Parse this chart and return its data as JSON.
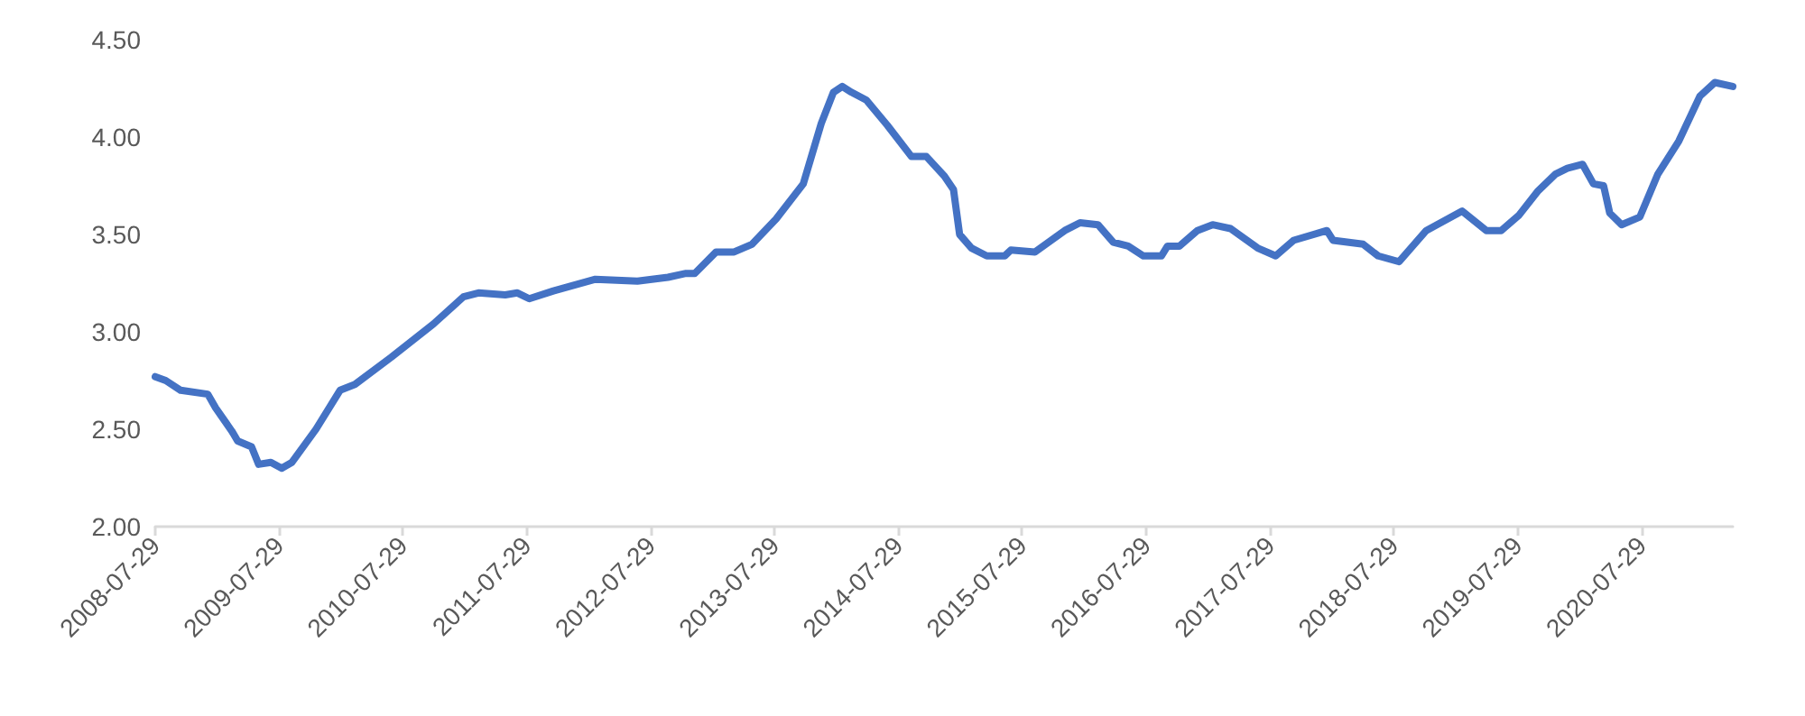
{
  "chart_data": {
    "type": "line",
    "marker": "none",
    "line_style": "solid",
    "grid": false,
    "xlim": [
      "2008-07-29",
      "2021-04-24"
    ],
    "xticks": [
      "2008-07-29",
      "2009-07-29",
      "2010-07-29",
      "2011-07-29",
      "2012-07-29",
      "2013-07-29",
      "2014-07-29",
      "2015-07-29",
      "2016-07-29",
      "2017-07-29",
      "2018-07-29",
      "2019-07-29",
      "2020-07-29"
    ],
    "ylim": [
      2,
      4.5
    ],
    "yticks": [
      {
        "value": 2,
        "label": "2.00"
      },
      {
        "value": 2.5,
        "label": "2.50"
      },
      {
        "value": 3,
        "label": "3.00"
      },
      {
        "value": 3.5,
        "label": "3.50"
      },
      {
        "value": 4,
        "label": "4.00"
      },
      {
        "value": 4.5,
        "label": "4.50"
      }
    ],
    "series": [
      {
        "color": "#4472c4",
        "x": [
          "2008-07-29",
          "2008-08-29",
          "2008-10-12",
          "2008-12-31",
          "2009-01-23",
          "2009-03-12",
          "2009-03-29",
          "2009-05-09",
          "2009-05-30",
          "2009-07-05",
          "2009-08-06",
          "2009-09-05",
          "2009-11-15",
          "2010-01-25",
          "2010-03-10",
          "2010-06-25",
          "2010-10-27",
          "2011-01-24",
          "2011-03-09",
          "2011-05-27",
          "2011-07-02",
          "2011-08-06",
          "2011-10-16",
          "2012-02-17",
          "2012-06-20",
          "2012-09-18",
          "2012-11-10",
          "2012-12-06",
          "2013-02-07",
          "2013-04-01",
          "2013-05-24",
          "2013-08-03",
          "2013-10-22",
          "2013-12-14",
          "2014-01-19",
          "2014-02-14",
          "2014-03-13",
          "2014-04-26",
          "2014-06-27",
          "2014-09-06",
          "2014-10-20",
          "2014-12-12",
          "2015-01-08",
          "2015-01-26",
          "2015-03-02",
          "2015-04-16",
          "2015-06-08",
          "2015-06-26",
          "2015-09-05",
          "2015-12-02",
          "2016-01-16",
          "2016-03-09",
          "2016-04-23",
          "2016-06-06",
          "2016-07-21",
          "2016-09-12",
          "2016-09-30",
          "2016-11-04",
          "2016-12-27",
          "2017-02-10",
          "2017-04-04",
          "2017-06-23",
          "2017-08-15",
          "2017-10-07",
          "2018-01-13",
          "2018-01-31",
          "2018-04-30",
          "2018-06-13",
          "2018-08-14",
          "2018-11-02",
          "2019-02-16",
          "2019-04-28",
          "2019-06-11",
          "2019-08-03",
          "2019-09-26",
          "2019-11-18",
          "2019-12-23",
          "2020-02-06",
          "2020-03-09",
          "2020-04-08",
          "2020-04-26",
          "2020-05-31",
          "2020-07-24",
          "2020-09-15",
          "2020-11-16",
          "2021-01-17",
          "2021-03-02",
          "2021-04-24"
        ],
        "values": [
          2.77,
          2.75,
          2.7,
          2.68,
          2.61,
          2.49,
          2.44,
          2.41,
          2.32,
          2.33,
          2.3,
          2.33,
          2.5,
          2.7,
          2.73,
          2.87,
          3.04,
          3.18,
          3.2,
          3.19,
          3.2,
          3.17,
          3.21,
          3.27,
          3.26,
          3.28,
          3.3,
          3.3,
          3.41,
          3.41,
          3.45,
          3.58,
          3.76,
          4.07,
          4.23,
          4.26,
          4.23,
          4.19,
          4.06,
          3.9,
          3.9,
          3.8,
          3.73,
          3.5,
          3.43,
          3.39,
          3.39,
          3.42,
          3.41,
          3.52,
          3.56,
          3.55,
          3.46,
          3.44,
          3.39,
          3.39,
          3.44,
          3.44,
          3.52,
          3.55,
          3.53,
          3.43,
          3.39,
          3.47,
          3.52,
          3.47,
          3.45,
          3.39,
          3.36,
          3.52,
          3.62,
          3.52,
          3.52,
          3.6,
          3.72,
          3.81,
          3.84,
          3.86,
          3.76,
          3.75,
          3.61,
          3.55,
          3.59,
          3.81,
          3.98,
          4.21,
          4.28,
          4.26
        ]
      }
    ]
  }
}
